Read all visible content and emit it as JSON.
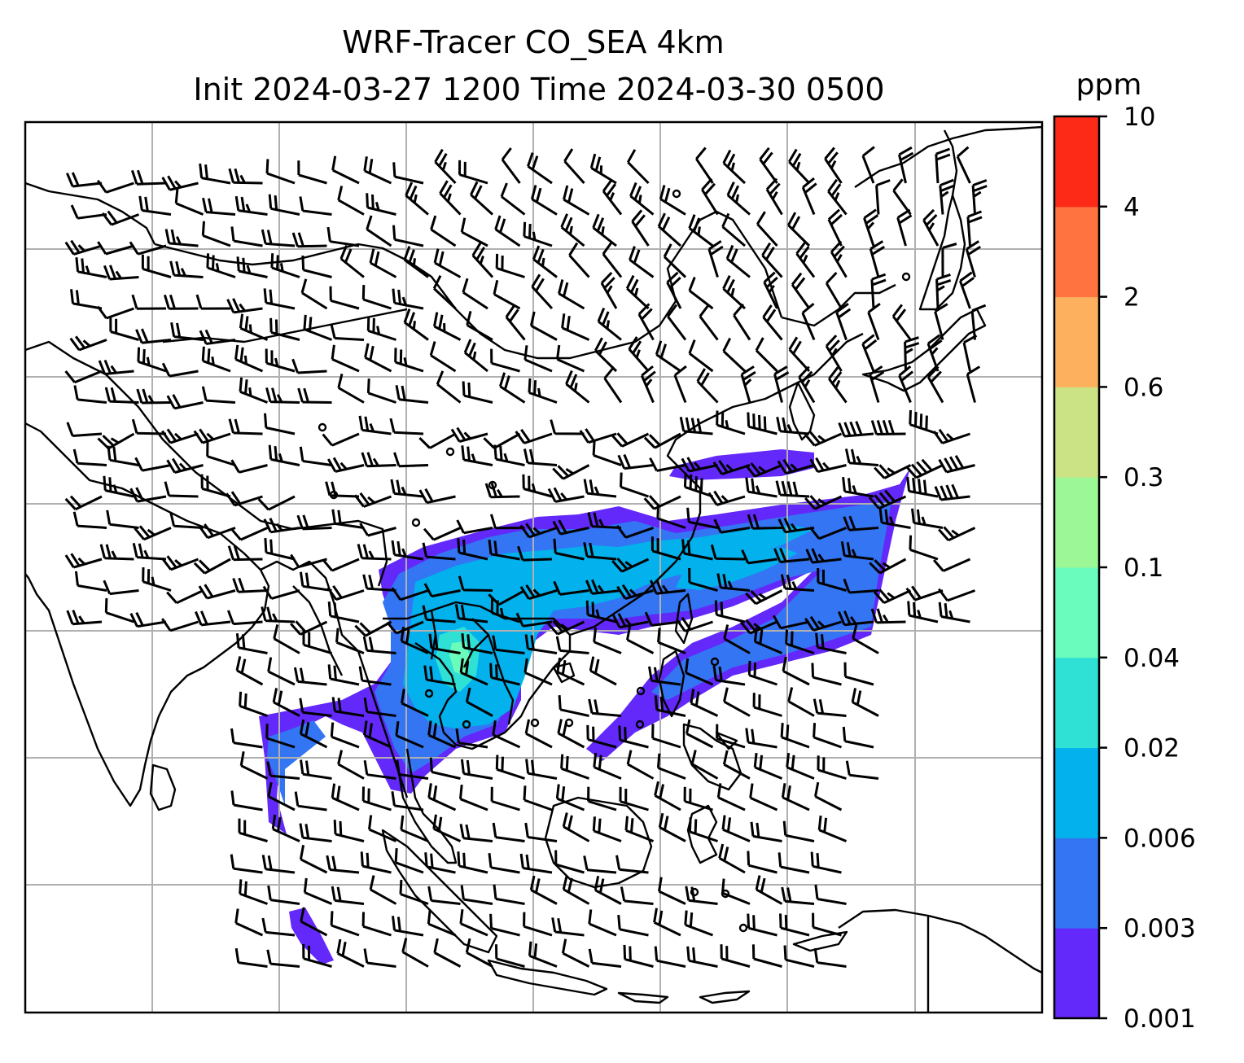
{
  "title": {
    "line1": "WRF-Tracer CO_SEA 4km",
    "line2": "Init 2024-03-27 1200 Time 2024-03-30 0500"
  },
  "colorbar": {
    "unit": "ppm",
    "ticks": [
      "0.001",
      "0.003",
      "0.006",
      "0.02",
      "0.04",
      "0.1",
      "0.3",
      "0.6",
      "2",
      "4",
      "10"
    ],
    "colors": [
      "#6328fa",
      "#3375f3",
      "#03b1ec",
      "#2fe0d5",
      "#6afcbd",
      "#9cf896",
      "#cbe385",
      "#fdb15e",
      "#fe7340",
      "#fd2a17"
    ]
  },
  "map": {
    "coastline_color": "#000000",
    "gridlines": true,
    "overlay": "wind barbs"
  }
}
